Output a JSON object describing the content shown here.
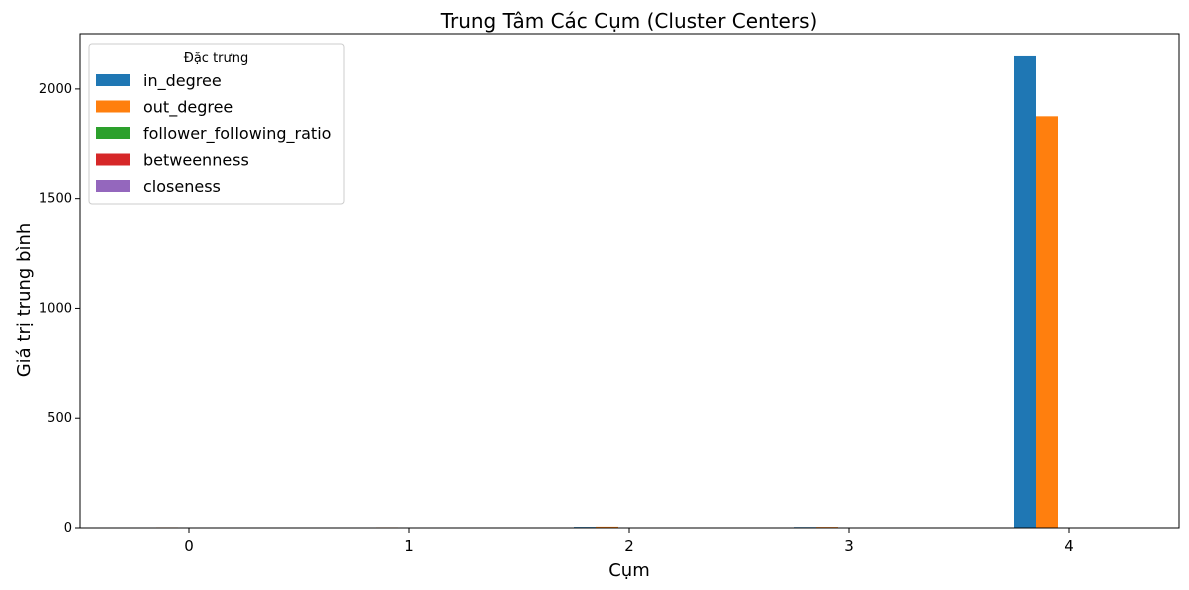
{
  "chart_data": {
    "type": "bar",
    "title": "Trung Tâm Các Cụm (Cluster Centers)",
    "xlabel": "Cụm",
    "ylabel": "Giá trị trung bình",
    "categories": [
      "0",
      "1",
      "2",
      "3",
      "4"
    ],
    "ylim": [
      0,
      2250
    ],
    "yticks": [
      0,
      500,
      1000,
      1500,
      2000
    ],
    "legend": {
      "title": "Đặc trưng",
      "placement": "top-left"
    },
    "grid": false,
    "series": [
      {
        "name": "in_degree",
        "color": "#1f77b4",
        "values": [
          1.2,
          1.5,
          4.0,
          3.5,
          2150
        ]
      },
      {
        "name": "out_degree",
        "color": "#ff7f0e",
        "values": [
          2.5,
          2.5,
          5.0,
          4.0,
          1875
        ]
      },
      {
        "name": "follower_following_ratio",
        "color": "#2ca02c",
        "values": [
          0.5,
          0.6,
          1.5,
          1.5,
          2.0
        ]
      },
      {
        "name": "betweenness",
        "color": "#d62728",
        "values": [
          0.0,
          0.0,
          0.0,
          0.0,
          0.0
        ]
      },
      {
        "name": "closeness",
        "color": "#9467bd",
        "values": [
          0.1,
          0.1,
          0.2,
          0.2,
          0.3
        ]
      }
    ]
  }
}
